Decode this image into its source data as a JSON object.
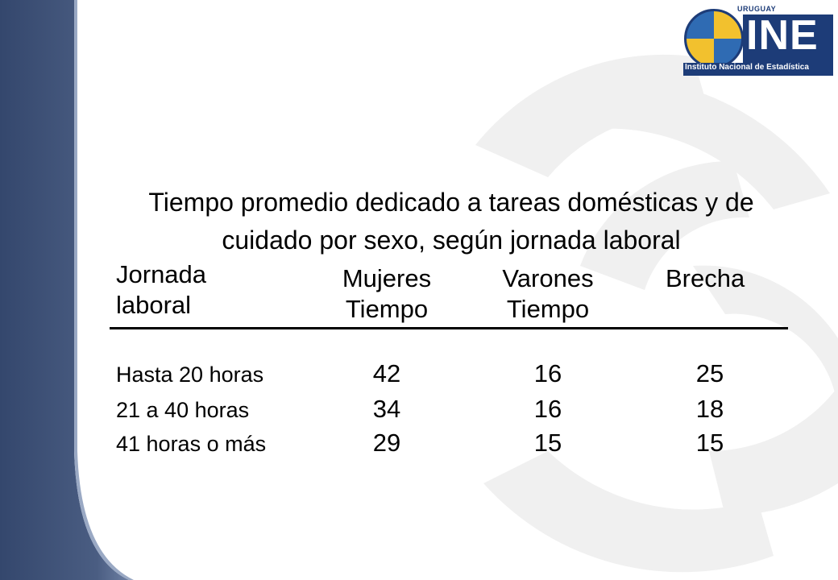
{
  "logo": {
    "top_label": "URUGUAY",
    "wordmark": "INE",
    "caption": "Instituto Nacional de Estadística",
    "colors": {
      "navy": "#1d3c78",
      "yellow": "#f2c12e",
      "blue": "#2f6bb3"
    }
  },
  "title_line1": "Tiempo promedio dedicado a tareas domésticas y de",
  "title_line2": "cuidado por sexo, según jornada laboral",
  "table": {
    "headers": {
      "jornada_1": "Jornada",
      "jornada_2": "laboral",
      "mujeres_1": "Mujeres",
      "mujeres_2": "Tiempo",
      "varones_1": "Varones",
      "varones_2": "Tiempo",
      "brecha": "Brecha"
    },
    "rows": [
      {
        "label": "Hasta 20 horas",
        "mujeres": "42",
        "varones": "16",
        "brecha": "25"
      },
      {
        "label": "21 a 40 horas",
        "mujeres": "34",
        "varones": "16",
        "brecha": "18"
      },
      {
        "label": "41 horas o más",
        "mujeres": "29",
        "varones": "15",
        "brecha": "15"
      }
    ]
  },
  "colors": {
    "sidebar": "#3f5277",
    "sidebar_light": "#8fa0bd",
    "watermark": "#f1f1f1"
  }
}
